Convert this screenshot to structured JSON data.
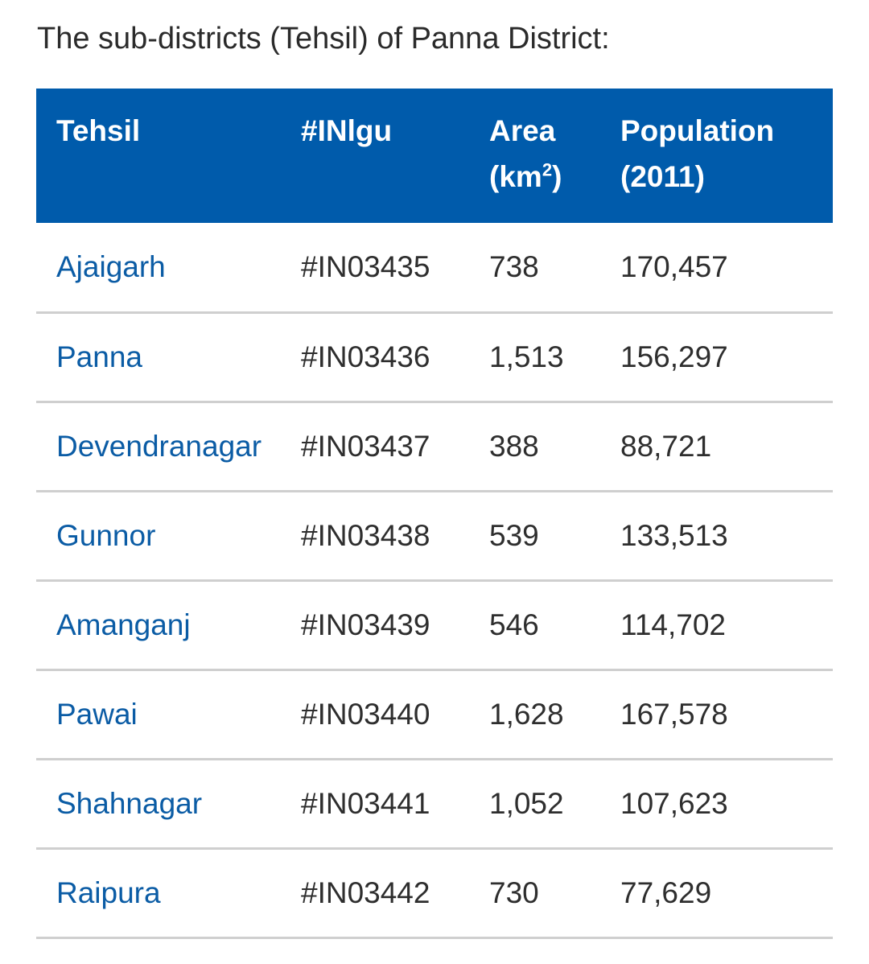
{
  "intro_text": "The sub-districts (Tehsil) of Panna District:",
  "table": {
    "headers": {
      "tehsil": "Tehsil",
      "inlgu": "#INlgu",
      "area_line1": "Area",
      "area_open": "(km",
      "area_sup": "2",
      "area_close": ")",
      "population_line1": "Population",
      "population_line2": "(2011)"
    },
    "rows": [
      {
        "tehsil": "Ajaigarh",
        "code": "#IN03435",
        "area": "738",
        "population": "170,457"
      },
      {
        "tehsil": "Panna",
        "code": "#IN03436",
        "area": "1,513",
        "population": "156,297"
      },
      {
        "tehsil": "Devendranagar",
        "code": "#IN03437",
        "area": "388",
        "population": "88,721"
      },
      {
        "tehsil": "Gunnor",
        "code": "#IN03438",
        "area": "539",
        "population": "133,513"
      },
      {
        "tehsil": "Amanganj",
        "code": "#IN03439",
        "area": "546",
        "population": "114,702"
      },
      {
        "tehsil": "Pawai",
        "code": "#IN03440",
        "area": "1,628",
        "population": "167,578"
      },
      {
        "tehsil": "Shahnagar",
        "code": "#IN03441",
        "area": "1,052",
        "population": "107,623"
      },
      {
        "tehsil": "Raipura",
        "code": "#IN03442",
        "area": "730",
        "population": "77,629"
      }
    ]
  },
  "colors": {
    "header_background": "#005bab",
    "header_text": "#ffffff",
    "link": "#0b5ca5",
    "body_text": "#2e2e2e",
    "row_divider": "#cfcfcf"
  }
}
